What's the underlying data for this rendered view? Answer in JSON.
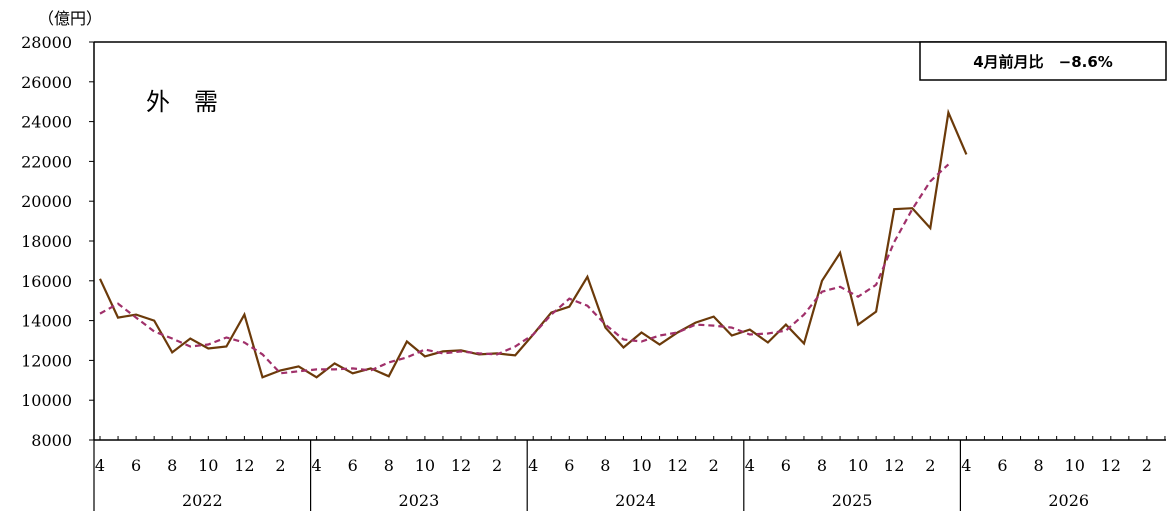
{
  "chart_data": {
    "type": "line",
    "unit_label": "（億円）",
    "panel_title": "外　需",
    "annotation": "4月前月比　−8.6%",
    "ylim": [
      8000,
      28000
    ],
    "y_ticks": [
      "8000",
      "10000",
      "12000",
      "14000",
      "16000",
      "18000",
      "20000",
      "22000",
      "24000",
      "26000",
      "28000"
    ],
    "month_ticks": [
      "4",
      "6",
      "8",
      "10",
      "12",
      "2"
    ],
    "years": [
      "2022",
      "2023",
      "2024",
      "2025",
      "2026"
    ],
    "x_start": "2022-04",
    "series": [
      {
        "style": "solid",
        "color": "#6b3a0a",
        "values": [
          16100,
          14150,
          14300,
          14000,
          12400,
          13100,
          12600,
          12700,
          14300,
          11150,
          11500,
          11700,
          11150,
          11850,
          11350,
          11600,
          11200,
          12950,
          12200,
          12450,
          12500,
          12300,
          12350,
          12250,
          13300,
          14400,
          14700,
          16200,
          13650,
          12650,
          13400,
          12800,
          13400,
          13900,
          14200,
          13250,
          13550,
          12900,
          13800,
          12850,
          16000,
          17400,
          13800,
          14450,
          19600,
          19650,
          18650,
          24450,
          22350
        ]
      },
      {
        "style": "dashed",
        "color": "#a0306a",
        "values": [
          14350,
          14850,
          14150,
          13450,
          13100,
          12700,
          12800,
          13150,
          12900,
          12300,
          11350,
          11450,
          11550,
          11550,
          11600,
          11500,
          11900,
          12150,
          12550,
          12350,
          12450,
          12350,
          12300,
          12700,
          13300,
          14300,
          15100,
          14750,
          13800,
          13050,
          12950,
          13250,
          13400,
          13800,
          13750,
          13650,
          13300,
          13350,
          13500,
          14300,
          15450,
          15700,
          15200,
          15800,
          17950,
          19600,
          21000,
          21850
        ]
      }
    ]
  }
}
